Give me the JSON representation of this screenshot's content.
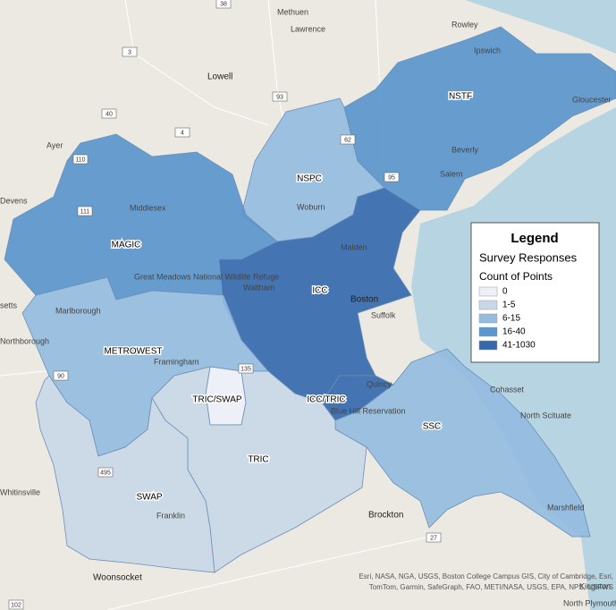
{
  "legend": {
    "title": "Legend",
    "subtitle": "Survey Responses",
    "field": "Count of Points",
    "classes": [
      {
        "label": "0",
        "color": "#eef0f8"
      },
      {
        "label": "1-5",
        "color": "#c9d8e8"
      },
      {
        "label": "6-15",
        "color": "#94bcdf"
      },
      {
        "label": "16-40",
        "color": "#5b96cc"
      },
      {
        "label": "41-1030",
        "color": "#3569ac"
      }
    ]
  },
  "regions": [
    {
      "label": "NSTF",
      "color": "#5b96cc"
    },
    {
      "label": "NSPC",
      "color": "#94bcdf"
    },
    {
      "label": "MAGIC",
      "color": "#5b96cc"
    },
    {
      "label": "ICC",
      "color": "#3569ac"
    },
    {
      "label": "METROWEST",
      "color": "#94bcdf"
    },
    {
      "label": "TRIC/SWAP",
      "color": "#eef0f8"
    },
    {
      "label": "ICC/TRIC",
      "color": "#3569ac"
    },
    {
      "label": "SSC",
      "color": "#94bcdf"
    },
    {
      "label": "TRIC",
      "color": "#c9d8e8"
    },
    {
      "label": "SWAP",
      "color": "#c9d8e8"
    }
  ],
  "places": [
    "Methuen",
    "Lawrence",
    "Rowley",
    "Ipswich",
    "Lowell",
    "Ayer",
    "Devens",
    "Middlesex",
    "Gloucester",
    "Beverly",
    "Salem",
    "Woburn",
    "Malden",
    "Boston",
    "Suffolk",
    "Waltham",
    "Great Meadows National Wildlife Refuge",
    "Marlborough",
    "Northborough",
    "Framingham",
    "Cohasset",
    "North Scituate",
    "Quincy",
    "Blue Hill Reservation",
    "Brockton",
    "Franklin",
    "Whitinsville",
    "Woonsocket",
    "Marshfield",
    "Kingston",
    "North Plymouth",
    "setts"
  ],
  "routes": [
    "38",
    "3",
    "93",
    "40",
    "4",
    "110",
    "111",
    "62",
    "95",
    "90",
    "135",
    "495",
    "27",
    "102"
  ],
  "attribution": "Esri, NASA, NGA, USGS, Boston College Campus GIS, City of Cambridge, Esri, TomTom, Garmin, SafeGraph, FAO, METI/NASA, USGS, EPA, NPS, USFWS"
}
